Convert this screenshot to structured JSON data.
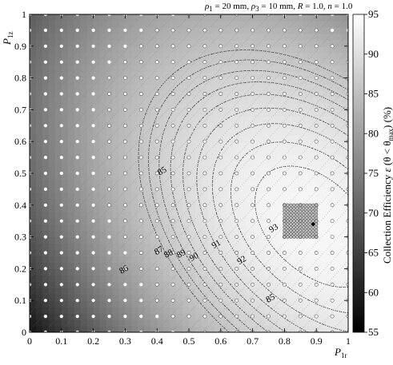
{
  "chart_data": {
    "type": "heatmap",
    "title": "ρ1 = 20 mm, ρ3 = 10 mm, R = 1.0, n = 1.0",
    "title_parts": {
      "a_sym": "ρ",
      "a_sub": "1",
      "a_val": " = 20 mm, ",
      "b_sym": "ρ",
      "b_sub": "3",
      "b_val": " = 10 mm, ",
      "c_sym": "R",
      "c_val": " = 1.0, ",
      "d_sym": "n",
      "d_val": " = 1.0"
    },
    "xlabel": {
      "main": "P",
      "sub": "1r"
    },
    "ylabel": {
      "main": "P",
      "sub": "1z"
    },
    "xlim": [
      0,
      1
    ],
    "ylim": [
      0,
      1
    ],
    "x_ticks": [
      "0",
      "0.1",
      "0.2",
      "0.3",
      "0.4",
      "0.5",
      "0.6",
      "0.7",
      "0.8",
      "0.9",
      "1"
    ],
    "y_ticks": [
      "0",
      "0.1",
      "0.2",
      "0.3",
      "0.4",
      "0.5",
      "0.6",
      "0.7",
      "0.8",
      "0.9",
      "1"
    ],
    "colorbar": {
      "label": "Collection Efficiency  ε (θ < θmax)  (%)",
      "label_parts": {
        "pre": "Collection Efficiency ",
        "eps": "ε",
        "mid": " (θ < θ",
        "sub": "max",
        "post": ")  (%)"
      },
      "range": [
        55,
        95
      ],
      "ticks": [
        "55",
        "60",
        "65",
        "70",
        "75",
        "80",
        "85",
        "90",
        "95"
      ],
      "colormap": "gray"
    },
    "contour_levels": [
      85,
      86,
      87,
      88,
      89,
      90,
      91,
      92,
      93
    ],
    "contour_labels": [
      "85",
      "85",
      "86",
      "87",
      "88",
      "89",
      "90",
      "91",
      "92",
      "93"
    ],
    "peak": {
      "x": 0.89,
      "y": 0.34
    },
    "sample_grid_step": 0.05,
    "dense_grid": {
      "x_range": [
        0.8,
        0.9
      ],
      "y_range": [
        0.3,
        0.4
      ]
    }
  }
}
